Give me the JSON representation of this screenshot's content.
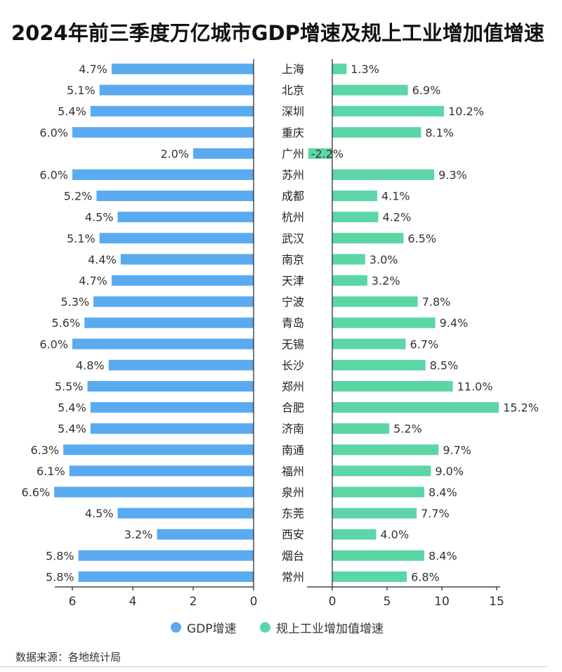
{
  "title": "2024年前三季度万亿城市GDP增速及规上工业增加值增速",
  "source": "数据来源：各地统计局",
  "colors": {
    "gdp": "#5aaaf0",
    "industry": "#5cd6a6"
  },
  "chart_data": {
    "type": "bar",
    "title": "2024年前三季度万亿城市GDP增速及规上工业增加值增速",
    "categories": [
      "上海",
      "北京",
      "深圳",
      "重庆",
      "广州",
      "苏州",
      "成都",
      "杭州",
      "武汉",
      "南京",
      "天津",
      "宁波",
      "青岛",
      "无锡",
      "长沙",
      "郑州",
      "合肥",
      "济南",
      "南通",
      "福州",
      "泉州",
      "东莞",
      "西安",
      "烟台",
      "常州"
    ],
    "series": [
      {
        "name": "GDP增速",
        "values": [
          4.7,
          5.1,
          5.4,
          6.0,
          2.0,
          6.0,
          5.2,
          4.5,
          5.1,
          4.4,
          4.7,
          5.3,
          5.6,
          6.0,
          4.8,
          5.5,
          5.4,
          5.4,
          6.3,
          6.1,
          6.6,
          4.5,
          3.2,
          5.8,
          5.8
        ],
        "labels": [
          "4.7%",
          "5.1%",
          "5.4%",
          "6.0%",
          "2.0%",
          "6.0%",
          "5.2%",
          "4.5%",
          "5.1%",
          "4.4%",
          "4.7%",
          "5.3%",
          "5.6%",
          "6.0%",
          "4.8%",
          "5.5%",
          "5.4%",
          "5.4%",
          "6.3%",
          "6.1%",
          "6.6%",
          "4.5%",
          "3.2%",
          "5.8%",
          "5.8%"
        ]
      },
      {
        "name": "规上工业增加值增速",
        "values": [
          1.3,
          6.9,
          10.2,
          8.1,
          -2.2,
          9.3,
          4.1,
          4.2,
          6.5,
          3.0,
          3.2,
          7.8,
          9.4,
          6.7,
          8.5,
          11.0,
          15.2,
          5.2,
          9.7,
          9.0,
          8.4,
          7.7,
          4.0,
          8.4,
          6.8
        ],
        "labels": [
          "1.3%",
          "6.9%",
          "10.2%",
          "8.1%",
          "-2.2%",
          "9.3%",
          "4.1%",
          "4.2%",
          "6.5%",
          "3.0%",
          "3.2%",
          "7.8%",
          "9.4%",
          "6.7%",
          "8.5%",
          "11.0%",
          "15.2%",
          "5.2%",
          "9.7%",
          "9.0%",
          "8.4%",
          "7.7%",
          "4.0%",
          "8.4%",
          "6.8%"
        ]
      }
    ],
    "left_axis": {
      "ticks": [
        "6",
        "4",
        "2",
        "0"
      ],
      "tick_values": [
        6,
        4,
        2,
        0
      ],
      "range": [
        0,
        7
      ]
    },
    "right_axis": {
      "ticks": [
        "0",
        "5",
        "10",
        "15"
      ],
      "tick_values": [
        0,
        5,
        10,
        15
      ],
      "range": [
        -2.5,
        15.5
      ]
    },
    "legend": [
      {
        "label": "GDP增速"
      },
      {
        "label": "规上工业增加值增速"
      }
    ],
    "legend_position": "bottom-center",
    "grid": false
  }
}
